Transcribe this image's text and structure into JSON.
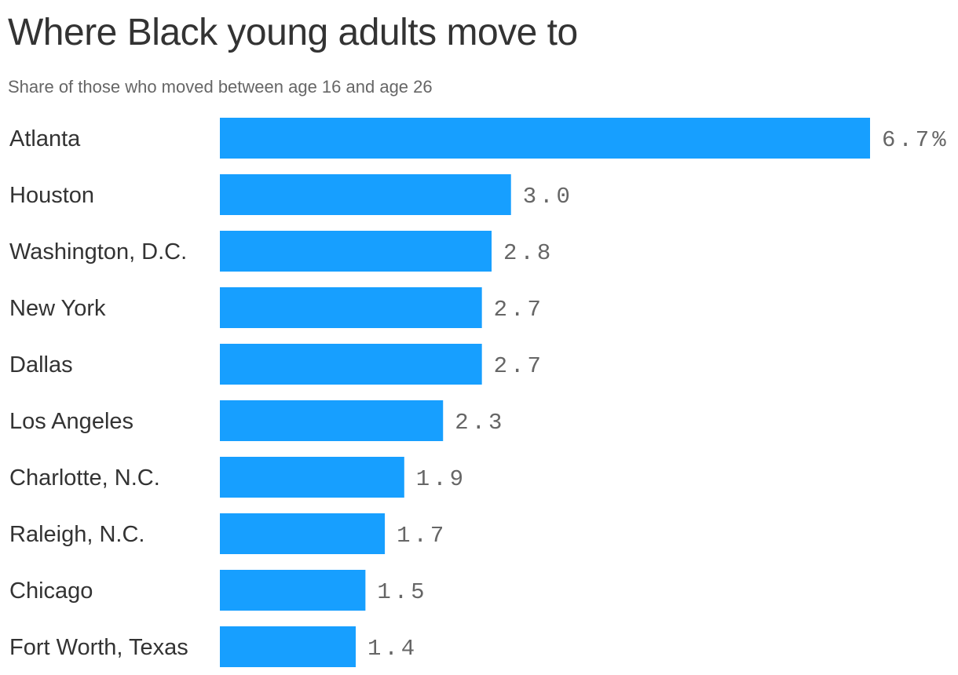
{
  "title": "Where Black young adults move to",
  "subtitle": "Share of those who moved between age 16 and age 26",
  "colors": {
    "bar": "#179fff",
    "text": "#333333",
    "value_text": "#666666"
  },
  "chart_data": {
    "type": "bar",
    "orientation": "horizontal",
    "categories": [
      "Atlanta",
      "Houston",
      "Washington, D.C.",
      "New York",
      "Dallas",
      "Los Angeles",
      "Charlotte, N.C.",
      "Raleigh, N.C.",
      "Chicago",
      "Fort Worth, Texas"
    ],
    "values": [
      6.7,
      3.0,
      2.8,
      2.7,
      2.7,
      2.3,
      1.9,
      1.7,
      1.5,
      1.4
    ],
    "value_labels": [
      "6.7%",
      "3.0",
      "2.8",
      "2.7",
      "2.7",
      "2.3",
      "1.9",
      "1.7",
      "1.5",
      "1.4"
    ],
    "title": "Where Black young adults move to",
    "subtitle": "Share of those who moved between age 16 and age 26",
    "xlabel": "",
    "ylabel": "",
    "grid": false,
    "legend": "none"
  }
}
